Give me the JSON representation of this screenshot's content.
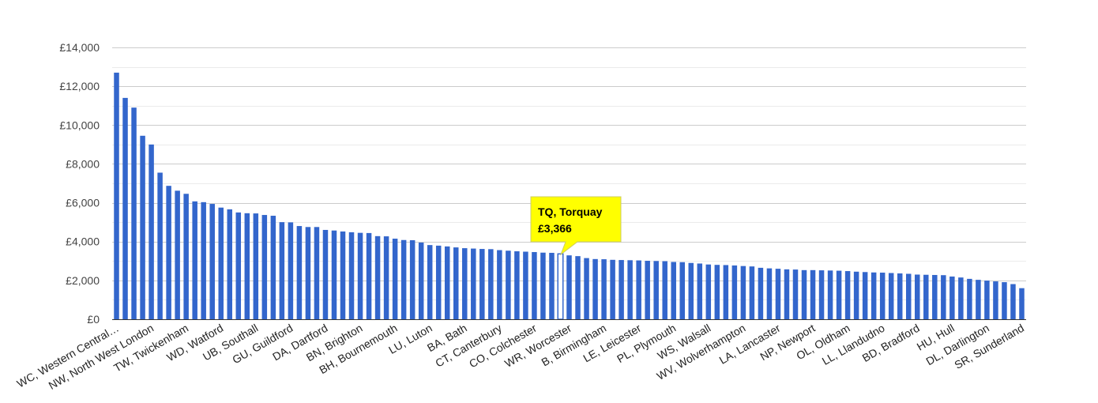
{
  "chart_data": {
    "type": "bar",
    "title": "",
    "xlabel": "",
    "ylabel": "",
    "ylim": [
      0,
      14000
    ],
    "yticks": [
      "£0",
      "£2,000",
      "£4,000",
      "£6,000",
      "£8,000",
      "£10,000",
      "£12,000",
      "£14,000"
    ],
    "grid": true,
    "legend": "none",
    "bar_color": "#3366cc",
    "labeled_categories": [
      "WC, Western Central…",
      "NW, North West London",
      "TW, Twickenham",
      "WD, Watford",
      "UB, Southall",
      "GU, Guildford",
      "DA, Dartford",
      "BN, Brighton",
      "BH, Bournemouth",
      "LU, Luton",
      "BA, Bath",
      "CT, Canterbury",
      "CO, Colchester",
      "WR, Worcester",
      "B, Birmingham",
      "LE, Leicester",
      "PL, Plymouth",
      "WS, Walsall",
      "WV, Wolverhampton",
      "LA, Lancaster",
      "NP, Newport",
      "OL, Oldham",
      "LL, Llandudno",
      "BD, Bradford",
      "HU, Hull",
      "DL, Darlington",
      "SR, Sunderland"
    ],
    "label_every": 4,
    "values": [
      12700,
      11400,
      10900,
      9450,
      9000,
      7550,
      6870,
      6620,
      6460,
      6070,
      6030,
      5940,
      5750,
      5660,
      5500,
      5460,
      5450,
      5370,
      5330,
      5000,
      4990,
      4800,
      4750,
      4750,
      4600,
      4570,
      4520,
      4480,
      4450,
      4440,
      4280,
      4270,
      4150,
      4080,
      4070,
      3950,
      3820,
      3790,
      3750,
      3700,
      3660,
      3640,
      3620,
      3610,
      3560,
      3530,
      3500,
      3480,
      3460,
      3430,
      3420,
      3366,
      3290,
      3250,
      3150,
      3100,
      3090,
      3060,
      3050,
      3040,
      3030,
      3010,
      3000,
      2990,
      2950,
      2940,
      2900,
      2870,
      2820,
      2800,
      2790,
      2770,
      2740,
      2720,
      2650,
      2620,
      2600,
      2570,
      2560,
      2530,
      2530,
      2520,
      2510,
      2500,
      2480,
      2450,
      2430,
      2410,
      2400,
      2380,
      2360,
      2340,
      2300,
      2290,
      2280,
      2270,
      2200,
      2150,
      2080,
      2030,
      1990,
      1950,
      1910,
      1810,
      1600
    ],
    "highlighted": {
      "index": 51,
      "label": "TQ, Torquay",
      "value": 3366
    }
  },
  "tooltip": {
    "title": "TQ, Torquay",
    "value": "£3,366",
    "background": "#ffff00"
  }
}
